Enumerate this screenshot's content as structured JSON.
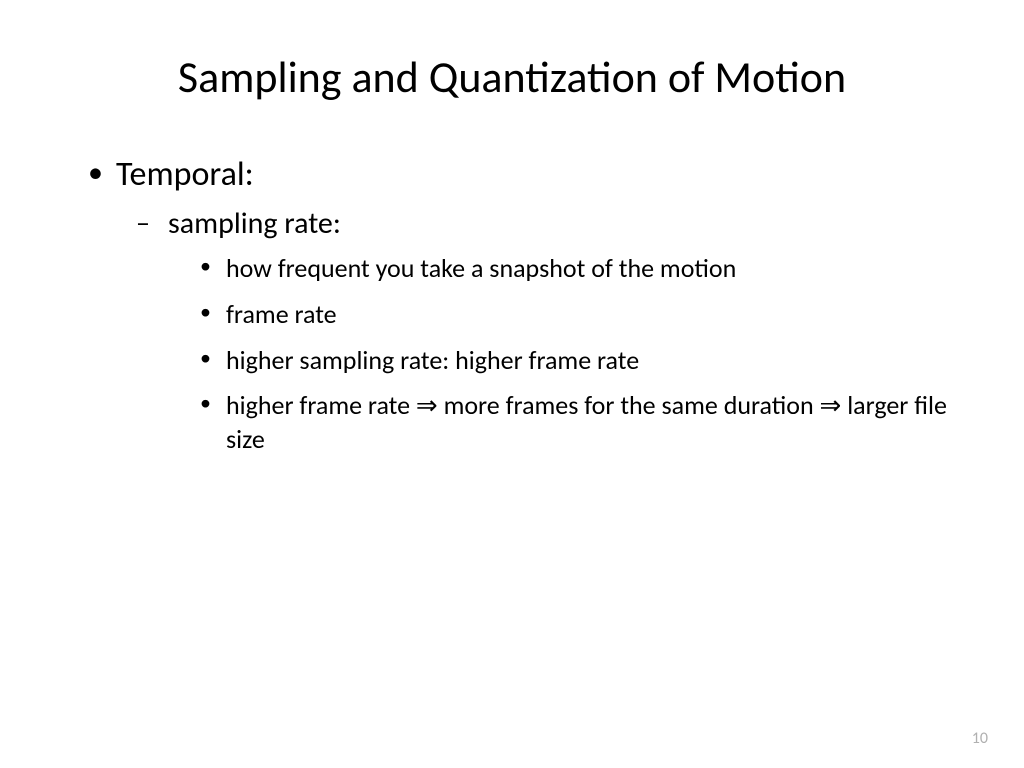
{
  "slide": {
    "title": "Sampling and Quantization of Motion",
    "bullets": {
      "level1_item1": "Temporal:",
      "level2_item1": "sampling rate:",
      "level3_item1": "how frequent you take a snapshot of the motion",
      "level3_item2": "frame rate",
      "level3_item3": "higher sampling rate: higher frame rate",
      "level3_item4_part1": "higher frame rate ",
      "level3_item4_part2": " more frames for the same duration ",
      "level3_item4_part3": " larger file size"
    },
    "arrow_symbol": "⇒",
    "page_number": "10"
  },
  "styling": {
    "background_color": "#ffffff",
    "text_color": "#000000",
    "page_number_color": "#b0b0b0",
    "title_fontsize": 44,
    "level1_fontsize": 34,
    "level2_fontsize": 30,
    "level3_fontsize": 26,
    "font_family": "Calibri"
  }
}
